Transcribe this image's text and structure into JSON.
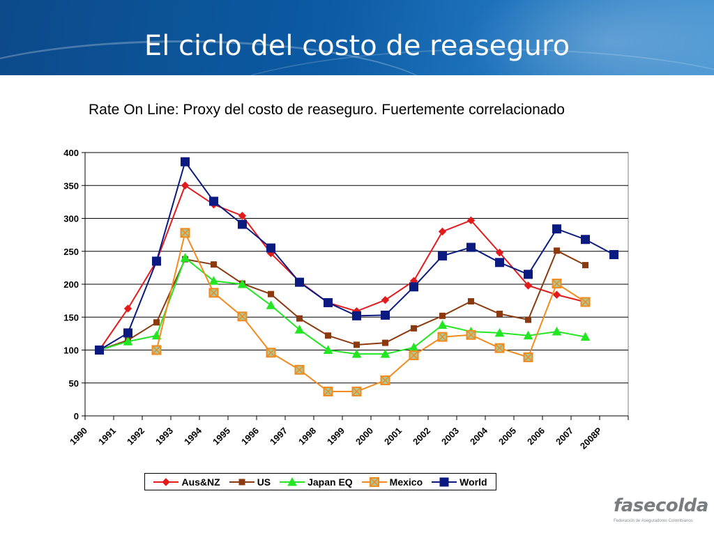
{
  "slide": {
    "title": "El ciclo del costo de reaseguro",
    "subtitle": "Rate On Line: Proxy del costo de reaseguro. Fuertemente correlacionado"
  },
  "logo": {
    "text": "fasecolda",
    "tagline": "Federación de Aseguradores Colombianos"
  },
  "chart_data": {
    "type": "line",
    "categories": [
      "1990",
      "1991",
      "1992",
      "1993",
      "1994",
      "1995",
      "1996",
      "1997",
      "1998",
      "1999",
      "2000",
      "2001",
      "2002",
      "2003",
      "2004",
      "2005",
      "2006",
      "2007",
      "2008P"
    ],
    "ylim": [
      0,
      400
    ],
    "yticks": [
      0,
      50,
      100,
      150,
      200,
      250,
      300,
      350,
      400
    ],
    "grid": true,
    "legend_position": "bottom",
    "series": [
      {
        "name": "Aus&NZ",
        "color": "#e31a1c",
        "marker": "diamond",
        "values": [
          100,
          163,
          235,
          350,
          321,
          304,
          247,
          204,
          172,
          159,
          176,
          205,
          280,
          297,
          248,
          198,
          184,
          173,
          null
        ]
      },
      {
        "name": "US",
        "color": "#8b3a0f",
        "marker": "square",
        "values": [
          100,
          115,
          142,
          238,
          230,
          201,
          185,
          148,
          122,
          108,
          111,
          133,
          152,
          174,
          155,
          146,
          251,
          229,
          null
        ]
      },
      {
        "name": "Japan EQ",
        "color": "#22e622",
        "marker": "triangle",
        "values": [
          100,
          113,
          122,
          240,
          205,
          200,
          168,
          131,
          100,
          94,
          94,
          104,
          138,
          128,
          126,
          122,
          128,
          120,
          null
        ]
      },
      {
        "name": "Mexico",
        "color": "#f28a1e",
        "marker": "xsquare",
        "values": [
          null,
          null,
          100,
          278,
          187,
          151,
          96,
          70,
          37,
          37,
          54,
          92,
          120,
          123,
          103,
          89,
          201,
          173,
          null
        ]
      },
      {
        "name": "World",
        "color": "#0a1a80",
        "marker": "bigsquare",
        "values": [
          100,
          126,
          235,
          386,
          326,
          291,
          255,
          203,
          172,
          152,
          153,
          196,
          243,
          256,
          233,
          215,
          284,
          268,
          245
        ]
      }
    ]
  }
}
